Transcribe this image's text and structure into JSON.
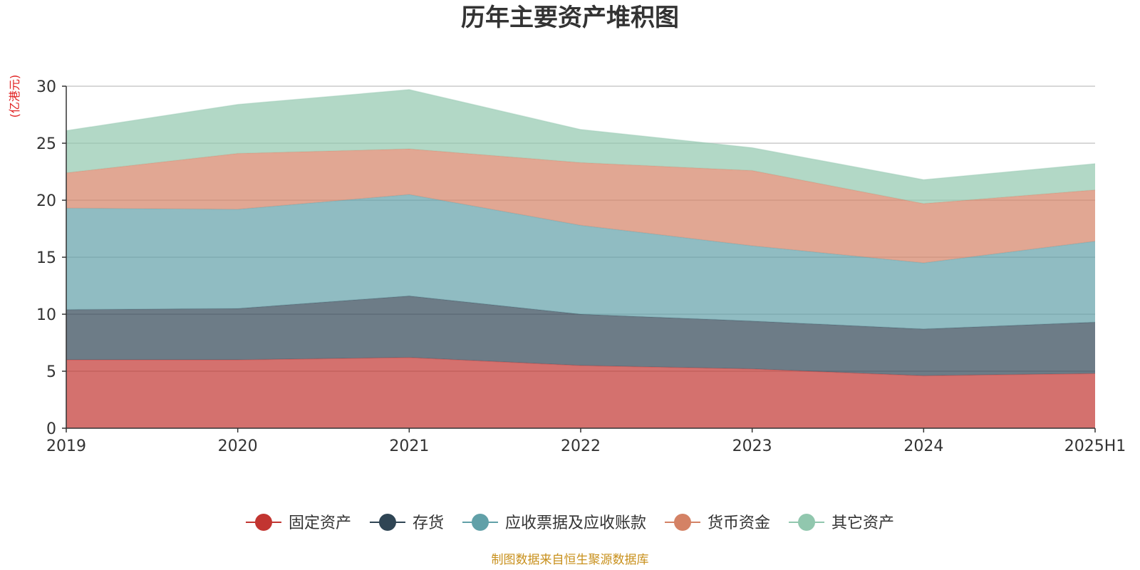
{
  "chart_data": {
    "type": "area",
    "stacked": true,
    "title": "历年主要资产堆积图",
    "ylabel": "(亿港元)",
    "xlabel": "",
    "categories": [
      "2019",
      "2020",
      "2021",
      "2022",
      "2023",
      "2024",
      "2025H1"
    ],
    "ylim": [
      0,
      30
    ],
    "yticks": [
      0,
      5,
      10,
      15,
      20,
      25,
      30
    ],
    "grid": true,
    "legend_position": "bottom",
    "series": [
      {
        "name": "固定资产",
        "color": "#c23531",
        "values": [
          6.0,
          6.0,
          6.2,
          5.5,
          5.2,
          4.6,
          4.8
        ]
      },
      {
        "name": "存货",
        "color": "#2f4554",
        "values": [
          4.4,
          4.5,
          5.4,
          4.5,
          4.2,
          4.1,
          4.5
        ]
      },
      {
        "name": "应收票据及应收账款",
        "color": "#61a0a8",
        "values": [
          8.9,
          8.7,
          8.9,
          7.8,
          6.6,
          5.8,
          7.1
        ]
      },
      {
        "name": "货币资金",
        "color": "#d48265",
        "values": [
          3.1,
          4.9,
          4.0,
          5.5,
          6.6,
          5.2,
          4.5
        ]
      },
      {
        "name": "其它资产",
        "color": "#91c7ae",
        "values": [
          3.7,
          4.3,
          5.2,
          2.9,
          2.0,
          2.1,
          2.3
        ]
      }
    ]
  },
  "footer": {
    "source": "制图数据来自恒生聚源数据库"
  }
}
